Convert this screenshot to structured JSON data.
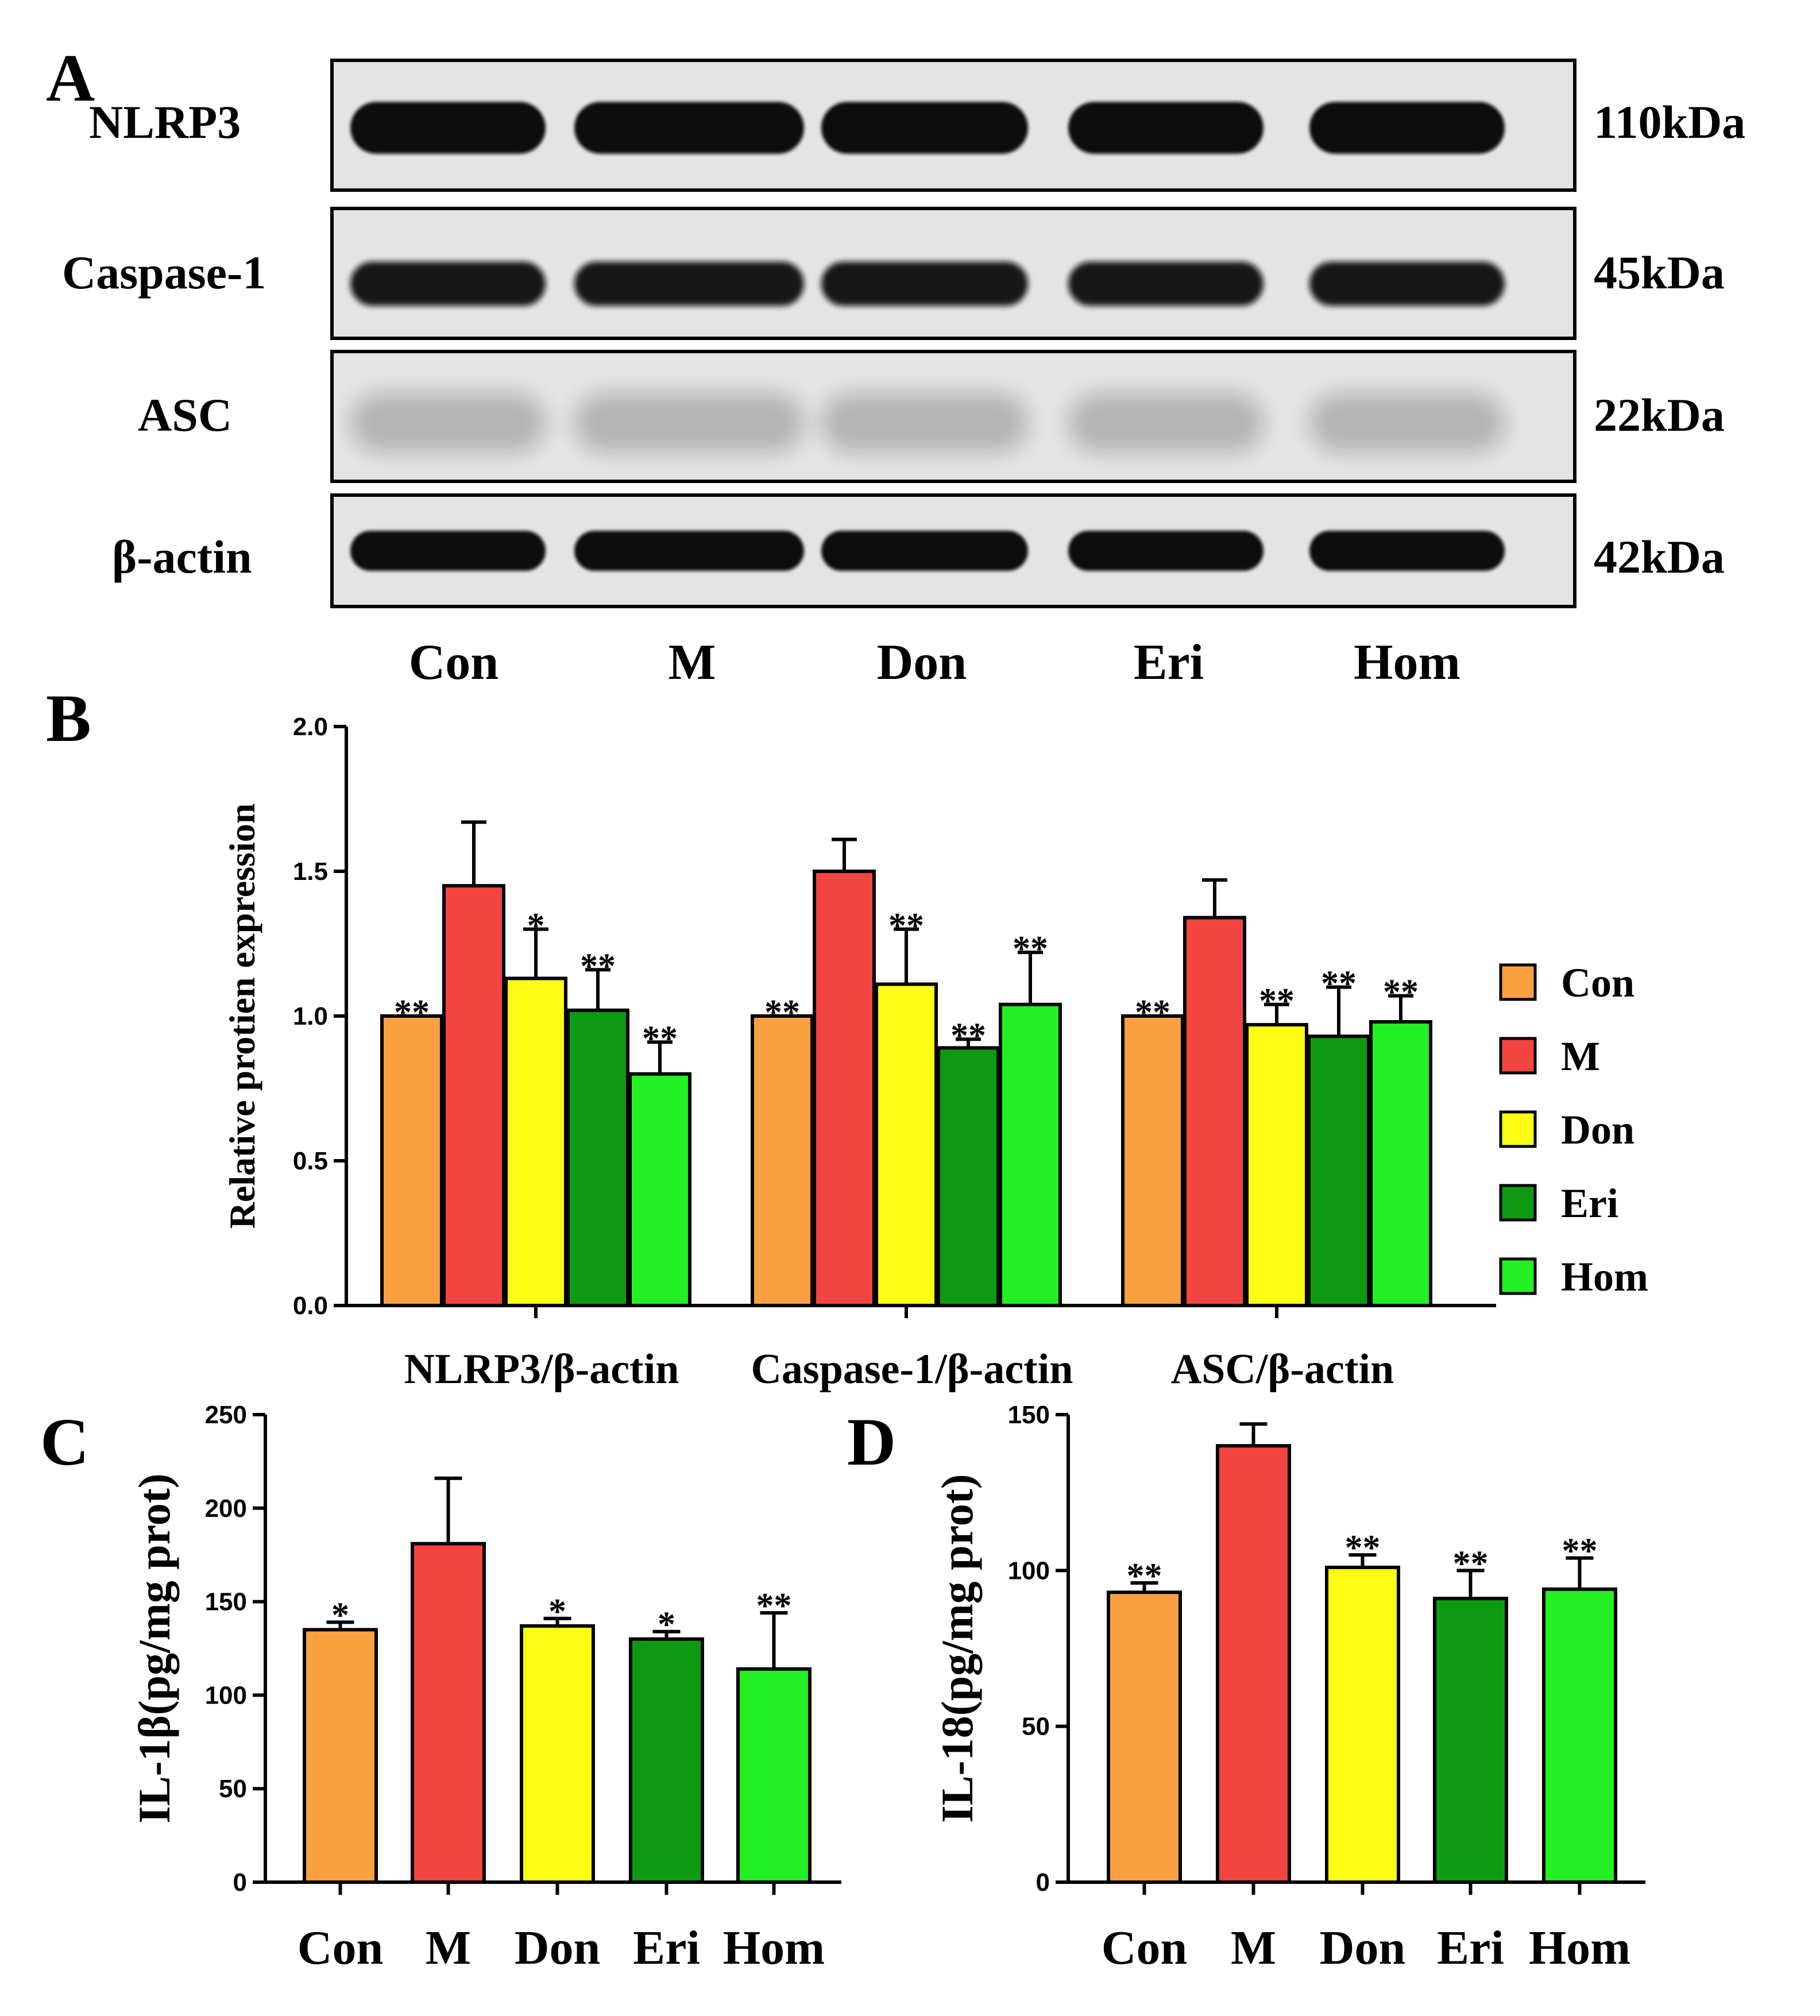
{
  "colors": {
    "Con": "#F9A141",
    "M": "#F24441",
    "Don": "#FDFD13",
    "Eri": "#0E9A12",
    "Hom": "#22F022",
    "blot_bg": "#E4E4E4",
    "band": "#0B0B0B"
  },
  "panels": {
    "A": "A",
    "B": "B",
    "C": "C",
    "D": "D"
  },
  "western_blot": {
    "rows": [
      {
        "protein": "NLRP3",
        "size": "110kDa"
      },
      {
        "protein": "Caspase-1",
        "size": "45kDa"
      },
      {
        "protein": "ASC",
        "size": "22kDa"
      },
      {
        "protein": "β-actin",
        "size": "42kDa"
      }
    ],
    "lanes": [
      "Con",
      "M",
      "Don",
      "Eri",
      "Hom"
    ]
  },
  "chart_data": [
    {
      "panel": "B",
      "type": "bar",
      "ylabel": "Relative protien expression",
      "ylim": [
        0,
        2.0
      ],
      "yticks": [
        "0.0",
        "0.5",
        "1.0",
        "1.5",
        "2.0"
      ],
      "categories": [
        "NLRP3/β-actin",
        "Caspase-1/β-actin",
        "ASC/β-actin"
      ],
      "legend_position": "right",
      "series": [
        {
          "name": "Con",
          "values": [
            1.0,
            1.0,
            1.0
          ],
          "errors": [
            0,
            0,
            0
          ],
          "sig": [
            "**",
            "**",
            "**"
          ]
        },
        {
          "name": "M",
          "values": [
            1.45,
            1.5,
            1.34
          ],
          "errors": [
            0.22,
            0.11,
            0.13
          ],
          "sig": [
            "",
            "",
            ""
          ]
        },
        {
          "name": "Don",
          "values": [
            1.13,
            1.11,
            0.97
          ],
          "errors": [
            0.17,
            0.19,
            0.07
          ],
          "sig": [
            "*",
            "**",
            "**"
          ]
        },
        {
          "name": "Eri",
          "values": [
            1.02,
            0.89,
            0.93
          ],
          "errors": [
            0.14,
            0.03,
            0.17
          ],
          "sig": [
            "**",
            "**",
            "**"
          ]
        },
        {
          "name": "Hom",
          "values": [
            0.8,
            1.04,
            0.98
          ],
          "errors": [
            0.11,
            0.18,
            0.09
          ],
          "sig": [
            "**",
            "**",
            "**"
          ]
        }
      ]
    },
    {
      "panel": "C",
      "type": "bar",
      "ylabel": "IL-1β(pg/mg prot)",
      "ylim": [
        0,
        250
      ],
      "yticks": [
        "0",
        "50",
        "100",
        "150",
        "200",
        "250"
      ],
      "categories": [
        "Con",
        "M",
        "Don",
        "Eri",
        "Hom"
      ],
      "values": [
        135,
        181,
        137,
        130,
        114
      ],
      "errors": [
        4,
        35,
        4,
        4,
        30
      ],
      "sig": [
        "*",
        "",
        "*",
        "*",
        "**"
      ]
    },
    {
      "panel": "D",
      "type": "bar",
      "ylabel": "IL-18(pg/mg prot)",
      "ylim": [
        0,
        150
      ],
      "yticks": [
        "0",
        "50",
        "100",
        "150"
      ],
      "categories": [
        "Con",
        "M",
        "Don",
        "Eri",
        "Hom"
      ],
      "values": [
        93,
        140,
        101,
        91,
        94
      ],
      "errors": [
        3,
        7,
        4,
        9,
        10
      ],
      "sig": [
        "**",
        "",
        "**",
        "**",
        "**"
      ]
    }
  ]
}
